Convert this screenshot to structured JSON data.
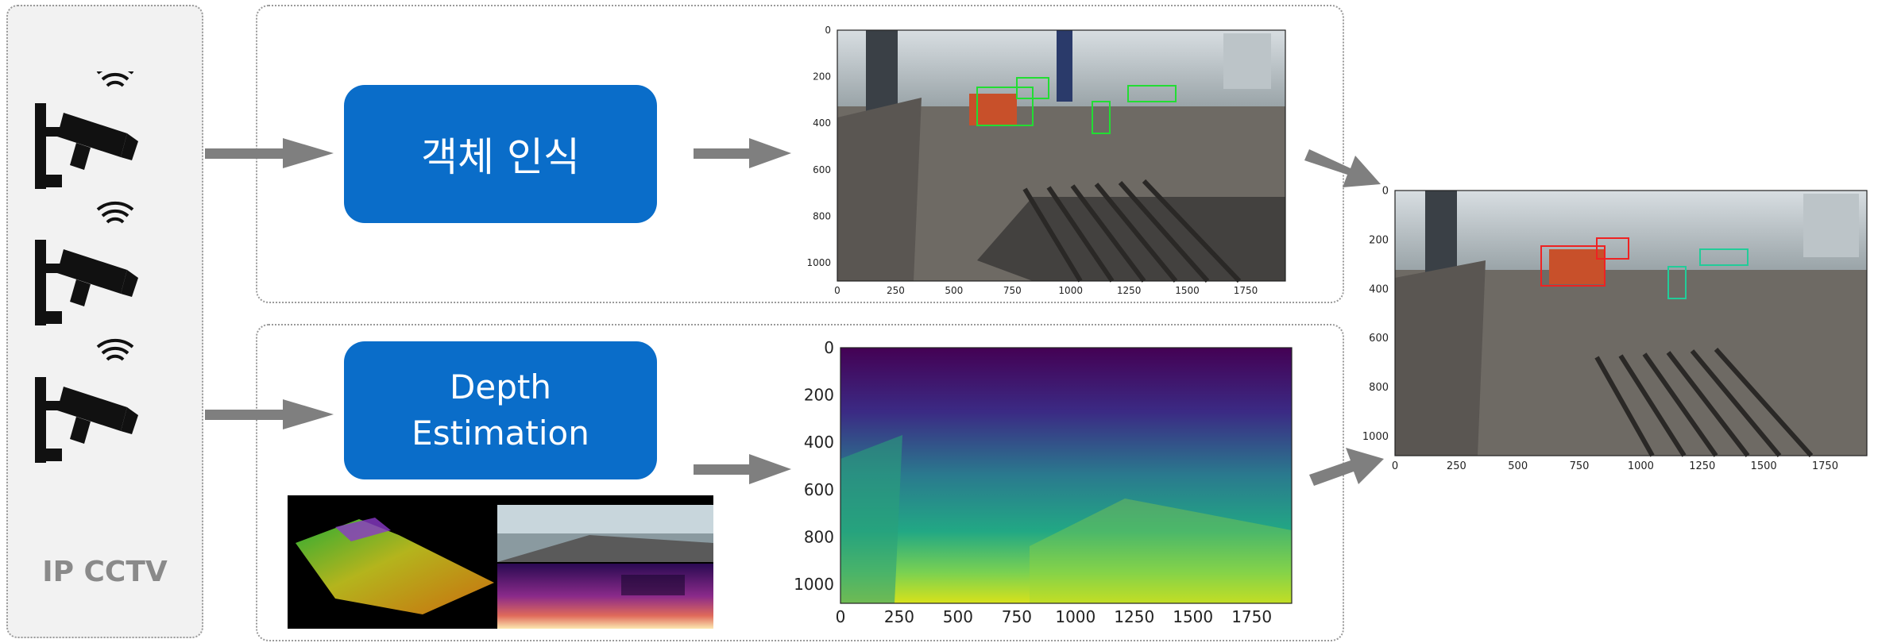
{
  "cctv": {
    "label": "IP CCTV",
    "camera_count": 3,
    "icon": "cctv-camera-icon"
  },
  "process": {
    "object_detection": "객체 인식",
    "depth_line1": "Depth",
    "depth_line2": "Estimation"
  },
  "detection_plot": {
    "x_ticks": [
      "0",
      "250",
      "500",
      "750",
      "1000",
      "1250",
      "1500",
      "1750"
    ],
    "y_ticks": [
      "0",
      "200",
      "400",
      "600",
      "800",
      "1000"
    ]
  },
  "depth_plot": {
    "x_ticks": [
      "0",
      "250",
      "500",
      "750",
      "1000",
      "1250",
      "1500",
      "1750"
    ],
    "y_ticks": [
      "0",
      "200",
      "400",
      "600",
      "800",
      "1000"
    ]
  },
  "fused_plot": {
    "x_ticks": [
      "0",
      "250",
      "500",
      "750",
      "1000",
      "1250",
      "1500",
      "1750"
    ],
    "y_ticks": [
      "0",
      "200",
      "400",
      "600",
      "800",
      "1000"
    ]
  },
  "colors": {
    "process_box": "#0a6dc9",
    "arrow": "#7f7f7f",
    "depth_top": "#440154",
    "depth_bottom": "#c8e020"
  }
}
